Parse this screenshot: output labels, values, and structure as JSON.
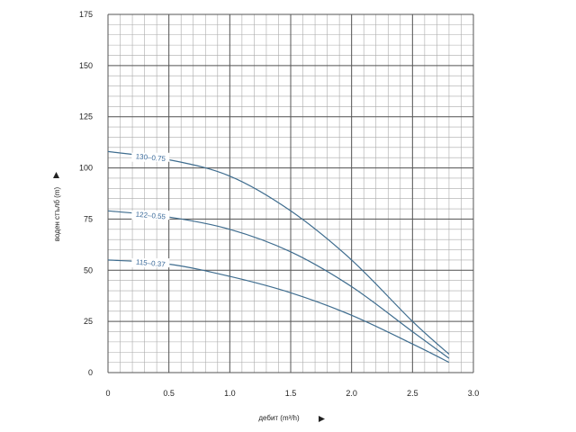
{
  "chart_data": {
    "type": "line",
    "xlabel": "дебит (m³/h)",
    "ylabel": "воден стълб (m)",
    "xlim": [
      0,
      3.0
    ],
    "ylim": [
      0,
      175
    ],
    "x_ticks": [
      0,
      0.5,
      1.0,
      1.5,
      2.0,
      2.5,
      3.0
    ],
    "x_tick_labels": [
      "0",
      "0.5",
      "1.0",
      "1.5",
      "2.0",
      "2.5",
      "3.0"
    ],
    "y_ticks": [
      0,
      25,
      50,
      75,
      100,
      125,
      150,
      175
    ],
    "y_tick_labels": [
      "0",
      "25",
      "50",
      "75",
      "100",
      "125",
      "150",
      "175"
    ],
    "grid": true,
    "colors": {
      "curve": "#3f6d8f",
      "grid_major": "#555555",
      "grid_minor": "#aaaaaa",
      "label": "#3a6a9a"
    },
    "series": [
      {
        "name": "130–0.75",
        "x": [
          0,
          0.5,
          1.0,
          1.5,
          2.0,
          2.5,
          2.8
        ],
        "y": [
          108,
          104,
          96,
          79,
          55,
          25,
          9
        ]
      },
      {
        "name": "122–0.55",
        "x": [
          0,
          0.5,
          1.0,
          1.5,
          2.0,
          2.5,
          2.8
        ],
        "y": [
          79,
          76,
          70,
          59,
          42,
          20,
          7
        ]
      },
      {
        "name": "115–0.37",
        "x": [
          0,
          0.5,
          1.0,
          1.5,
          2.0,
          2.5,
          2.8
        ],
        "y": [
          55,
          53,
          47,
          39,
          28,
          14,
          5
        ]
      }
    ]
  }
}
